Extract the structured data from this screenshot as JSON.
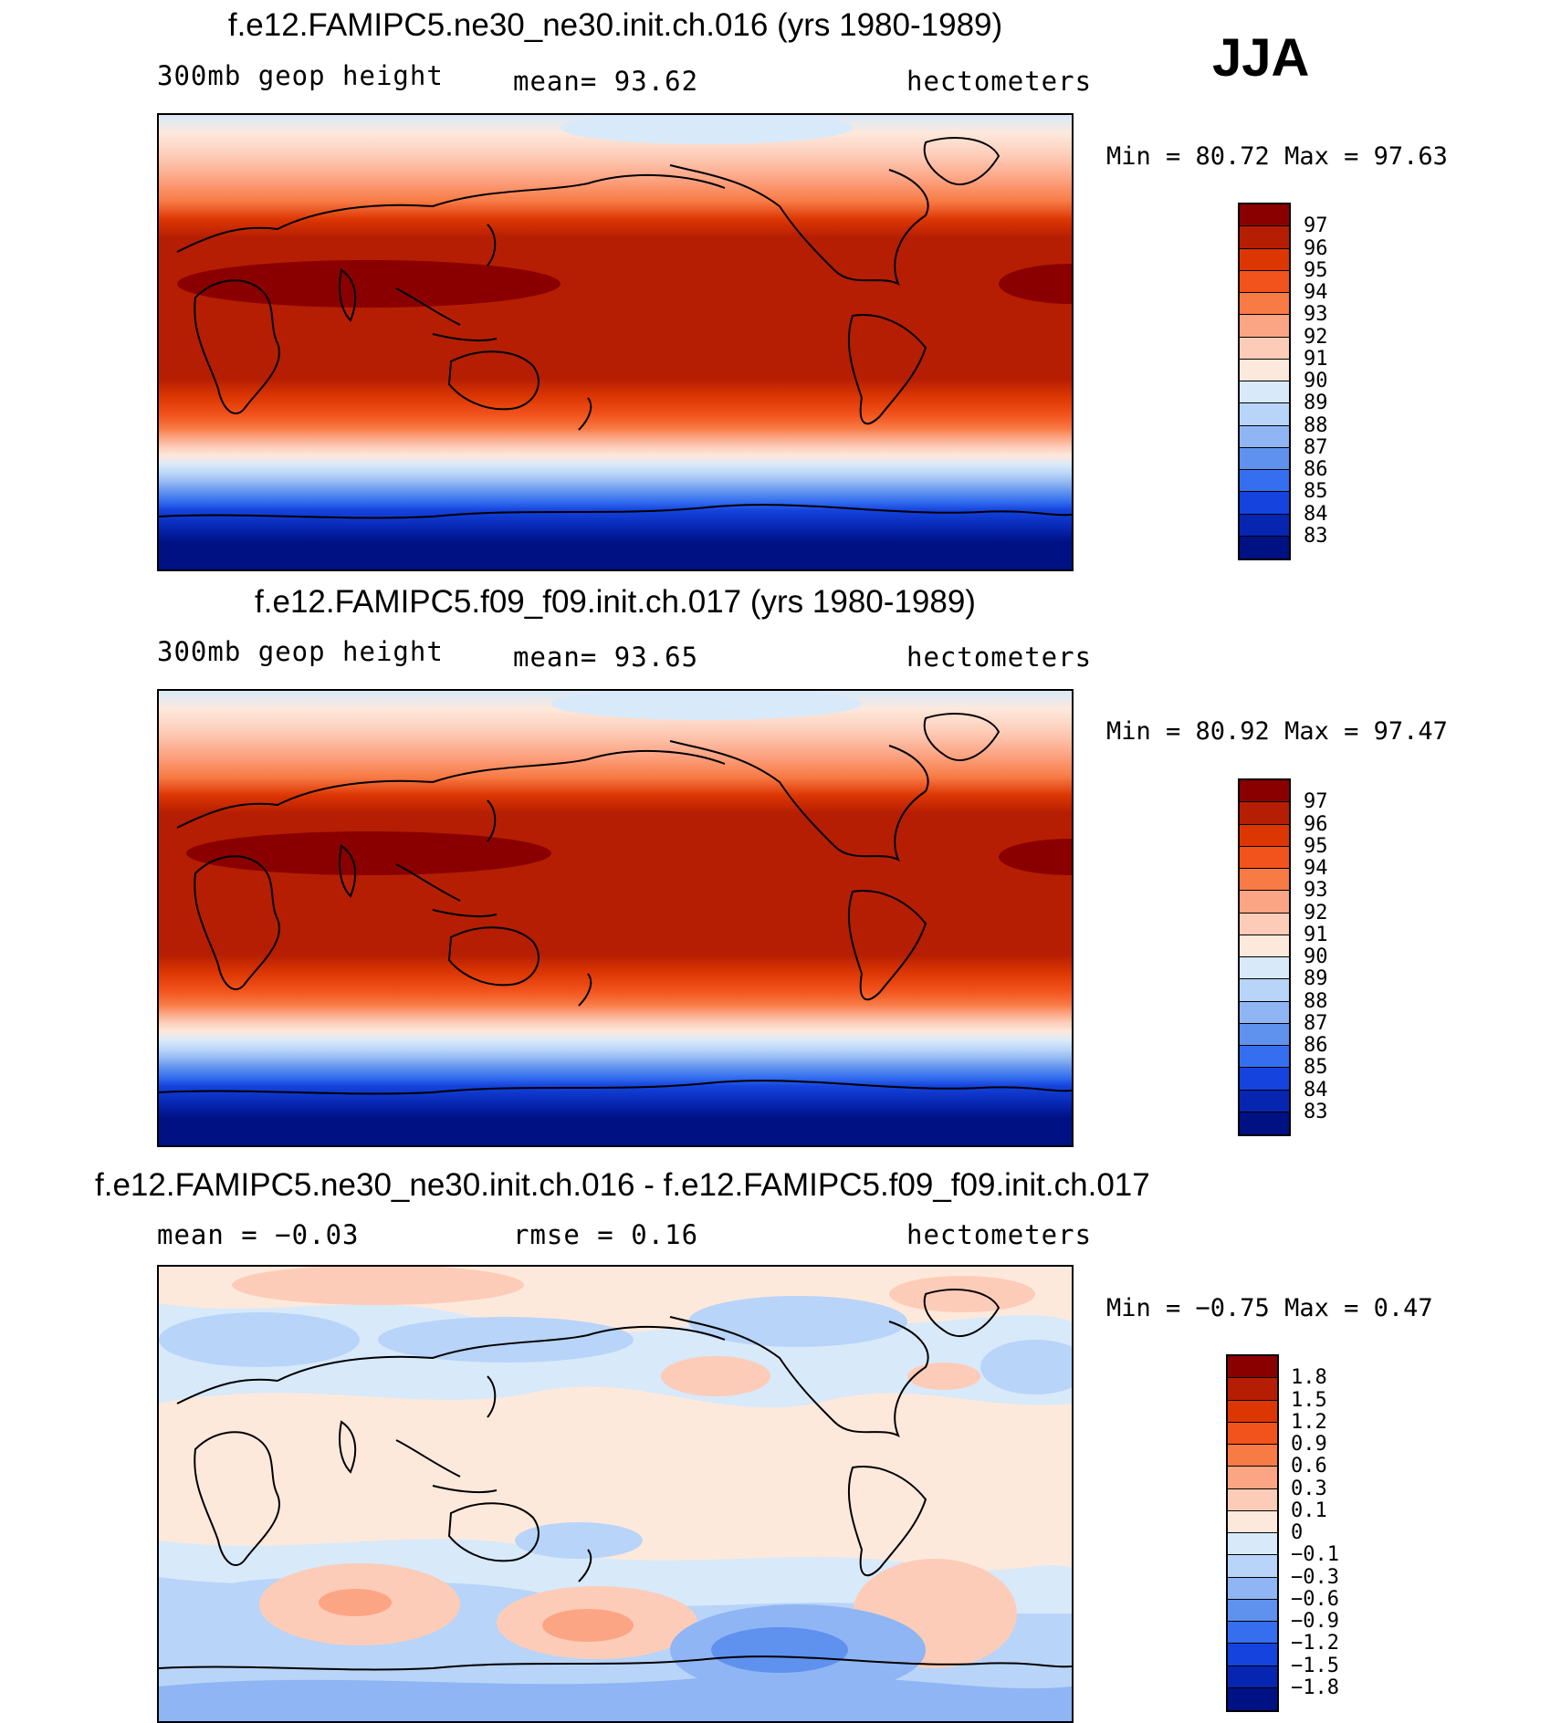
{
  "season": "JJA",
  "panels": [
    {
      "title": "f.e12.FAMIPC5.ne30_ne30.init.ch.016 (yrs 1980-1989)",
      "left_label": "300mb geop height",
      "center_label": "mean=  93.62",
      "right_label": "hectometers",
      "minmax": "Min =   80.72 Max =   97.63"
    },
    {
      "title": "f.e12.FAMIPC5.f09_f09.init.ch.017 (yrs 1980-1989)",
      "left_label": "300mb geop height",
      "center_label": "mean=  93.65",
      "right_label": "hectometers",
      "minmax": "Min =   80.92 Max =   97.47"
    },
    {
      "title": "f.e12.FAMIPC5.ne30_ne30.init.ch.016 - f.e12.FAMIPC5.f09_f09.init.ch.017",
      "left_label": "mean =  −0.03",
      "center_label": "rmse =   0.16",
      "right_label": "hectometers",
      "minmax": "Min =  −0.75 Max =    0.47"
    }
  ],
  "legend_abs": {
    "labels": [
      "97",
      "96",
      "95",
      "94",
      "93",
      "92",
      "91",
      "90",
      "89",
      "88",
      "87",
      "86",
      "85",
      "84",
      "83"
    ],
    "colors": [
      "#8a0000",
      "#b51e02",
      "#dc3603",
      "#f2531c",
      "#f87a45",
      "#fca584",
      "#fdccb8",
      "#fde9dc",
      "#d8e9fa",
      "#b8d4f8",
      "#8fb5f4",
      "#5f91ee",
      "#356ff0",
      "#1443dd",
      "#0625b0",
      "#001183"
    ]
  },
  "legend_diff": {
    "labels": [
      "1.8",
      "1.5",
      "1.2",
      "0.9",
      "0.6",
      "0.3",
      "0.1",
      "0",
      "−0.1",
      "−0.3",
      "−0.6",
      "−0.9",
      "−1.2",
      "−1.5",
      "−1.8"
    ],
    "colors": [
      "#8a0000",
      "#b51e02",
      "#dc3603",
      "#f2531c",
      "#f87a45",
      "#fca584",
      "#fdccb8",
      "#fde9dc",
      "#d8e9fa",
      "#b8d4f8",
      "#8fb5f4",
      "#5f91ee",
      "#356ff0",
      "#1443dd",
      "#0625b0",
      "#001183"
    ]
  }
}
